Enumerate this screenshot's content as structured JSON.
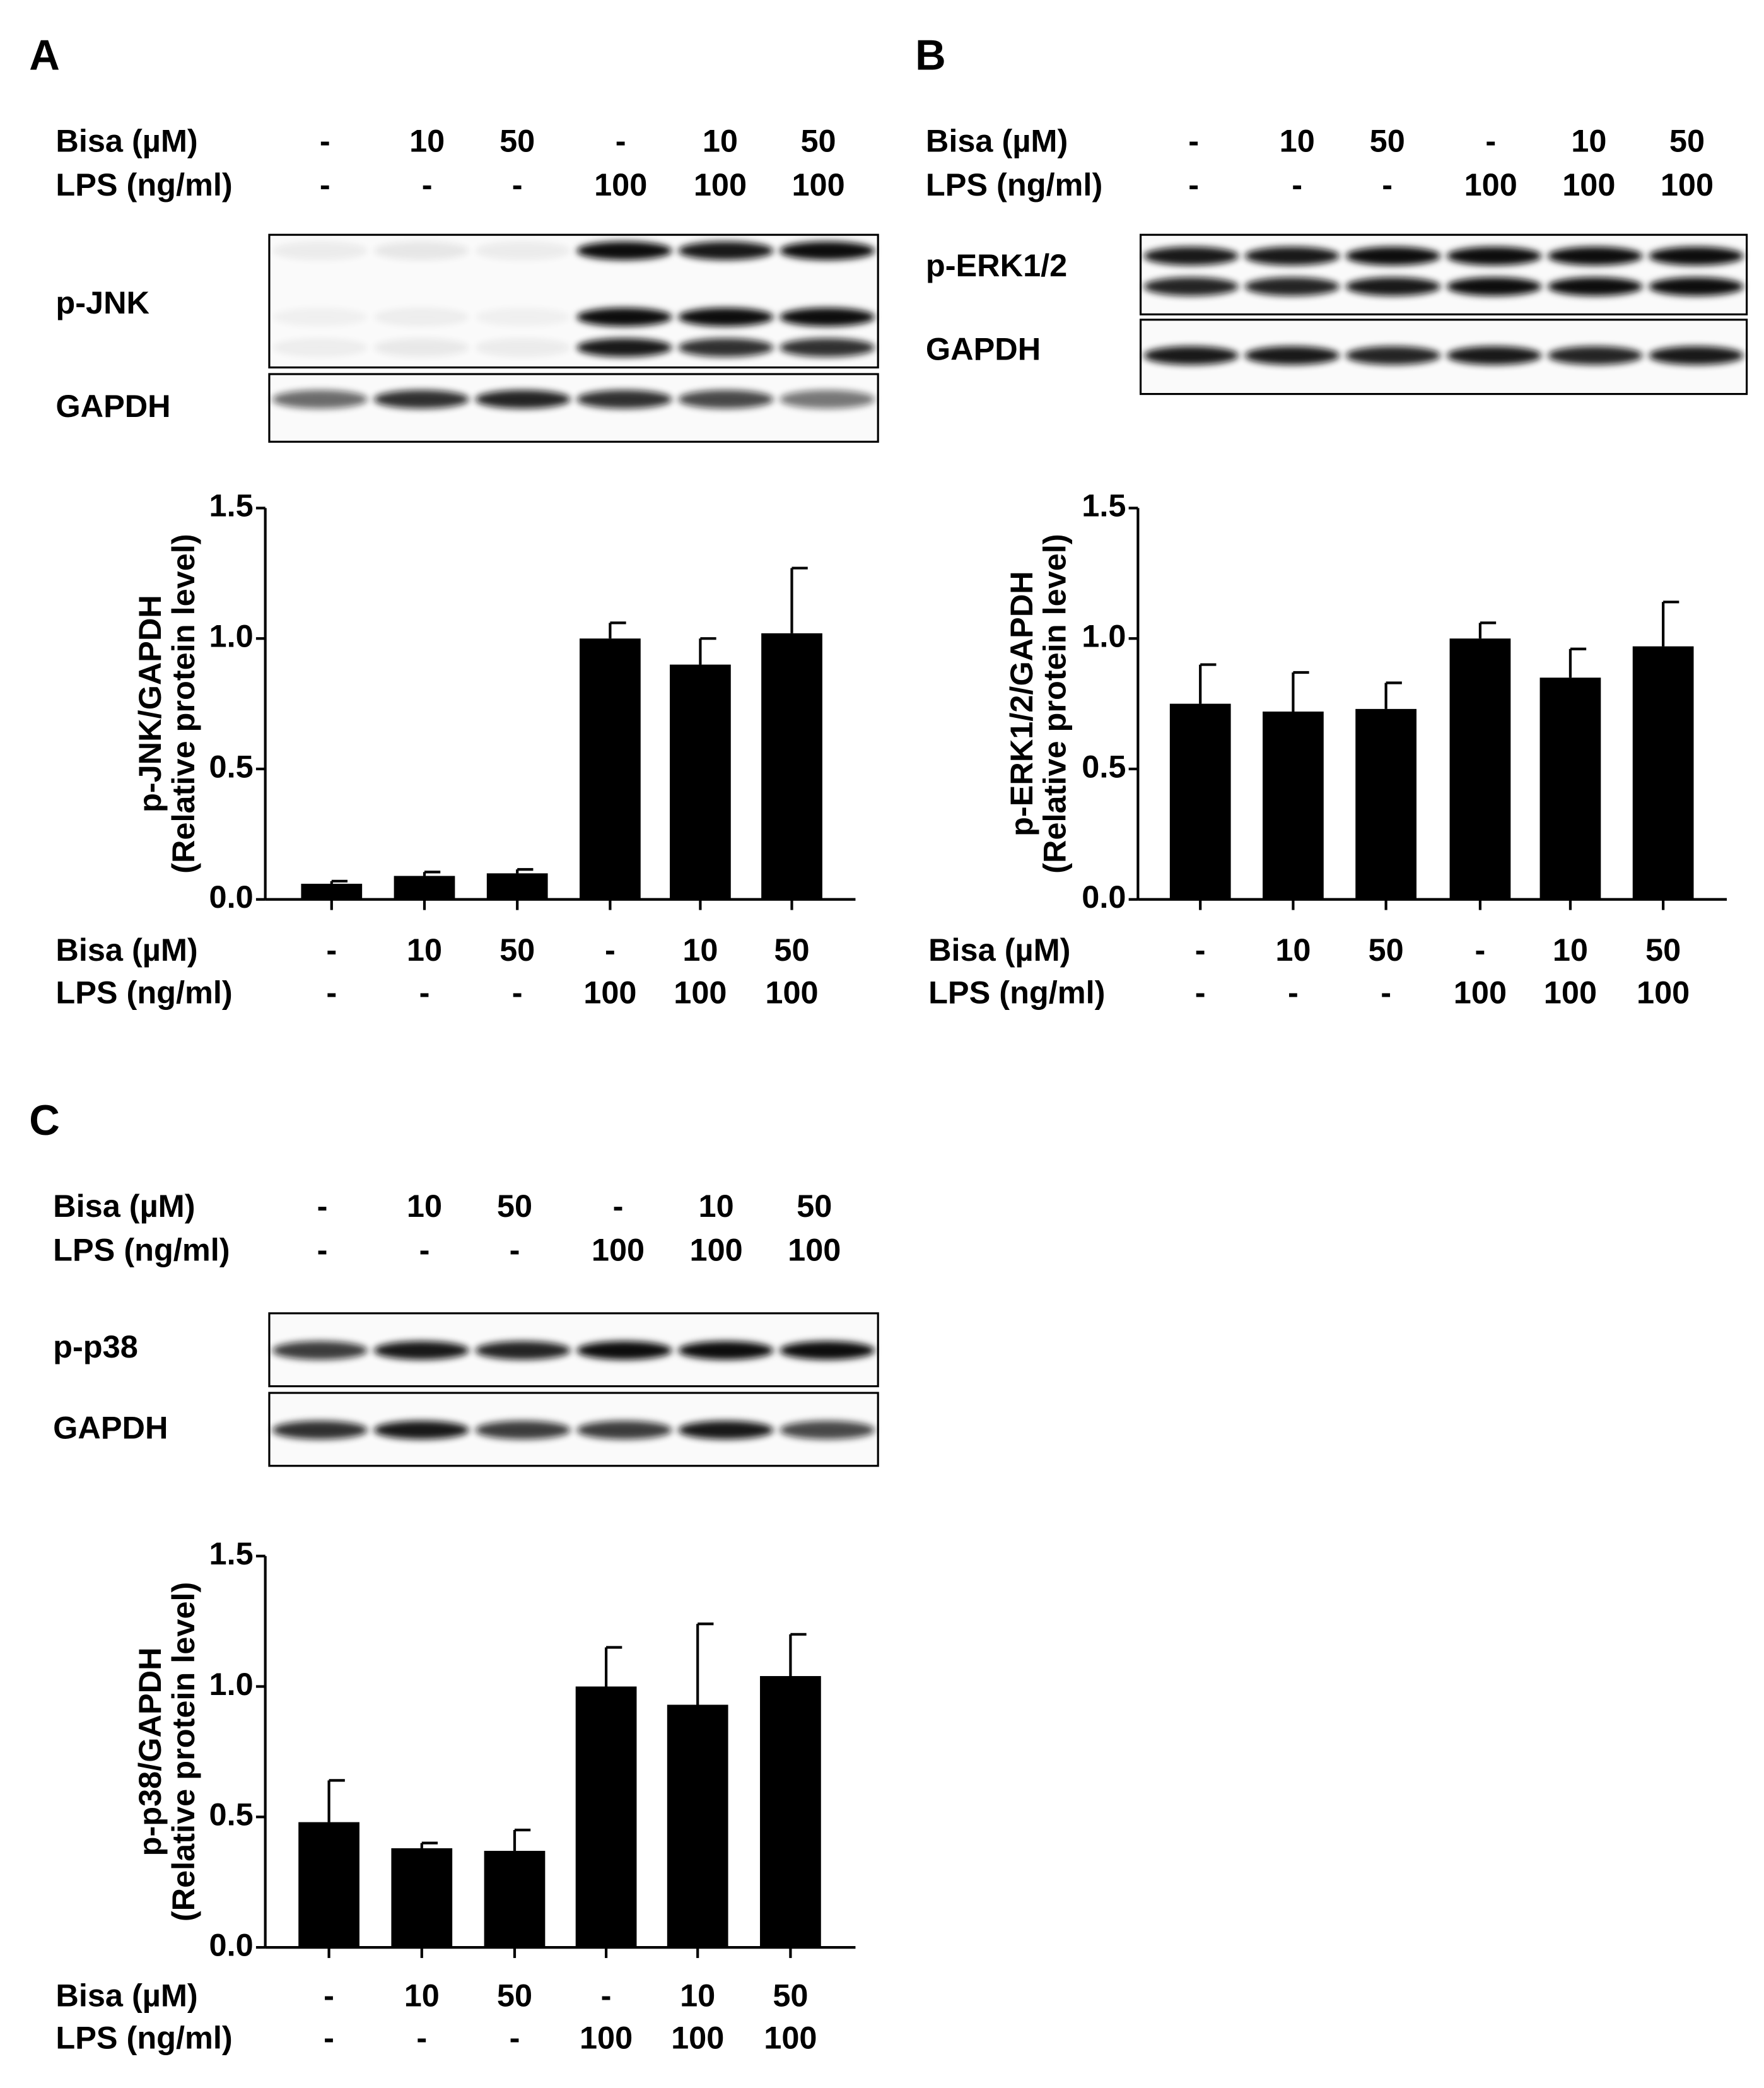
{
  "chart_data": [
    {
      "type": "bar",
      "panel": "A",
      "conditions": [
        {
          "label": "Bisa (µM)",
          "values": [
            "-",
            "10",
            "50",
            "-",
            "10",
            "50"
          ]
        },
        {
          "label": "LPS (ng/ml)",
          "values": [
            "-",
            "-",
            "-",
            "100",
            "100",
            "100"
          ]
        }
      ],
      "blots": [
        "p-JNK",
        "GAPDH"
      ],
      "ylabel": [
        "p-JNK/GAPDH",
        "(Relative protein level)"
      ],
      "values": [
        0.06,
        0.09,
        0.1,
        1.0,
        0.9,
        1.02
      ],
      "errors": [
        0.01,
        0.015,
        0.015,
        0.06,
        0.1,
        0.25
      ],
      "color": "#000000",
      "ylim": [
        0,
        1.5
      ],
      "yticks": [
        {
          "value": 0,
          "label": "0.0"
        },
        0.5,
        {
          "value": 1,
          "label": "1.0"
        },
        1.5
      ]
    },
    {
      "type": "bar",
      "panel": "B",
      "conditions": [
        {
          "label": "Bisa (µM)",
          "values": [
            "-",
            "10",
            "50",
            "-",
            "10",
            "50"
          ]
        },
        {
          "label": "LPS (ng/ml)",
          "values": [
            "-",
            "-",
            "-",
            "100",
            "100",
            "100"
          ]
        }
      ],
      "blots": [
        "p-ERK1/2",
        "GAPDH"
      ],
      "ylabel": [
        "p-ERK1/2/GAPDH",
        "(Relative protein level)"
      ],
      "values": [
        0.75,
        0.72,
        0.73,
        1.0,
        0.85,
        0.97
      ],
      "errors": [
        0.15,
        0.15,
        0.1,
        0.06,
        0.11,
        0.17
      ],
      "color": "#000000",
      "ylim": [
        0,
        1.5
      ],
      "yticks": [
        {
          "value": 0,
          "label": "0.0"
        },
        0.5,
        {
          "value": 1,
          "label": "1.0"
        },
        1.5
      ]
    },
    {
      "type": "bar",
      "panel": "C",
      "conditions": [
        {
          "label": "Bisa (µM)",
          "values": [
            "-",
            "10",
            "50",
            "-",
            "10",
            "50"
          ]
        },
        {
          "label": "LPS (ng/ml)",
          "values": [
            "-",
            "-",
            "-",
            "100",
            "100",
            "100"
          ]
        }
      ],
      "blots": [
        "p-p38",
        "GAPDH"
      ],
      "ylabel": [
        "p-p38/GAPDH",
        "(Relative protein level)"
      ],
      "values": [
        0.48,
        0.38,
        0.37,
        1.0,
        0.93,
        1.04
      ],
      "errors": [
        0.16,
        0.02,
        0.08,
        0.15,
        0.31,
        0.16
      ],
      "color": "#000000",
      "ylim": [
        0,
        1.5
      ],
      "yticks": [
        {
          "value": 0,
          "label": "0.0"
        },
        0.5,
        {
          "value": 1,
          "label": "1.0"
        },
        1.5
      ]
    }
  ]
}
